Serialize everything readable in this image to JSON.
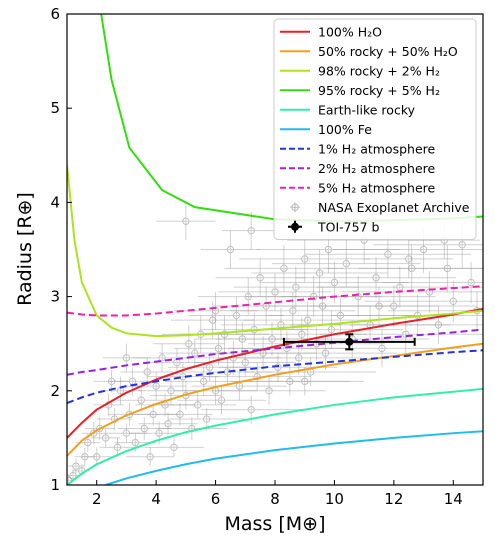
{
  "chart_data": {
    "type": "line",
    "xlabel": "Mass [M⊕]",
    "ylabel": "Radius [R⊕]",
    "xlim": [
      1,
      15
    ],
    "ylim": [
      1,
      6
    ],
    "xticks": [
      2,
      4,
      6,
      8,
      10,
      12,
      14
    ],
    "yticks": [
      1,
      2,
      3,
      4,
      5,
      6
    ],
    "legend_position": "top-right",
    "series": [
      {
        "name": "100% H₂O",
        "color": "#e8202a",
        "style": "solid",
        "x": [
          1,
          1.5,
          2,
          3,
          4,
          5,
          6,
          8,
          10,
          12,
          14,
          15
        ],
        "y": [
          1.5,
          1.66,
          1.8,
          1.98,
          2.12,
          2.23,
          2.32,
          2.47,
          2.6,
          2.71,
          2.81,
          2.87
        ]
      },
      {
        "name": "50% rocky + 50% H₂O",
        "color": "#f0a020",
        "style": "solid",
        "x": [
          1,
          1.5,
          2,
          3,
          4,
          5,
          6,
          8,
          10,
          12,
          14,
          15
        ],
        "y": [
          1.31,
          1.47,
          1.58,
          1.74,
          1.86,
          1.96,
          2.04,
          2.17,
          2.28,
          2.37,
          2.46,
          2.5
        ]
      },
      {
        "name": "98% rocky + 2% H₂",
        "color": "#aee31f",
        "style": "solid",
        "x": [
          1,
          1.25,
          1.5,
          2,
          2.5,
          3,
          4,
          5,
          6,
          8,
          10,
          12,
          14,
          15
        ],
        "y": [
          4.4,
          3.6,
          3.15,
          2.8,
          2.67,
          2.61,
          2.58,
          2.59,
          2.61,
          2.66,
          2.71,
          2.77,
          2.82,
          2.85
        ]
      },
      {
        "name": "95% rocky + 5% H₂",
        "color": "#33dd11",
        "style": "solid",
        "x": [
          2.15,
          2.5,
          3.1,
          4.2,
          5.3,
          8,
          10,
          12,
          14,
          15
        ],
        "y": [
          6.0,
          5.3,
          4.58,
          4.13,
          3.95,
          3.82,
          3.8,
          3.81,
          3.83,
          3.85
        ]
      },
      {
        "name": "Earth-like rocky",
        "color": "#33eeaa",
        "style": "solid",
        "x": [
          1,
          1.5,
          2,
          3,
          4,
          5,
          6,
          8,
          10,
          12,
          14,
          15
        ],
        "y": [
          1.0,
          1.12,
          1.22,
          1.36,
          1.47,
          1.56,
          1.63,
          1.75,
          1.85,
          1.93,
          1.99,
          2.02
        ]
      },
      {
        "name": "100% Fe",
        "color": "#22bbee",
        "style": "solid",
        "x": [
          2.3,
          3,
          4,
          5,
          6,
          8,
          10,
          12,
          14,
          15
        ],
        "y": [
          1.0,
          1.07,
          1.15,
          1.22,
          1.28,
          1.37,
          1.44,
          1.5,
          1.55,
          1.57
        ]
      },
      {
        "name": "1% H₂ atmosphere",
        "color": "#2233dd",
        "style": "dashed",
        "x": [
          1,
          1.5,
          2,
          3,
          4,
          5,
          6,
          8,
          10,
          12,
          14,
          15
        ],
        "y": [
          1.87,
          1.93,
          1.98,
          2.05,
          2.1,
          2.15,
          2.19,
          2.26,
          2.31,
          2.36,
          2.41,
          2.43
        ]
      },
      {
        "name": "2% H₂ atmosphere",
        "color": "#9922dd",
        "style": "dashed",
        "x": [
          1,
          1.5,
          2,
          3,
          4,
          5,
          6,
          8,
          10,
          12,
          14,
          15
        ],
        "y": [
          2.17,
          2.2,
          2.22,
          2.27,
          2.31,
          2.35,
          2.39,
          2.45,
          2.51,
          2.57,
          2.62,
          2.65
        ]
      },
      {
        "name": "5% H₂ atmosphere",
        "color": "#ee22aa",
        "style": "dashed",
        "x": [
          1,
          1.5,
          2,
          3,
          4,
          5,
          6,
          8,
          10,
          12,
          14,
          15
        ],
        "y": [
          2.83,
          2.81,
          2.8,
          2.8,
          2.82,
          2.85,
          2.88,
          2.94,
          3.0,
          3.05,
          3.09,
          3.11
        ]
      }
    ],
    "archive": {
      "name": "NASA Exoplanet Archive",
      "color": "#9a9a9a",
      "points": [
        [
          1.05,
          1.05,
          0.2,
          0.06
        ],
        [
          1.2,
          1.1,
          0.25,
          0.07
        ],
        [
          1.3,
          1.2,
          0.3,
          0.08
        ],
        [
          1.5,
          1.15,
          0.3,
          0.07
        ],
        [
          1.6,
          1.3,
          0.35,
          0.1
        ],
        [
          1.7,
          1.45,
          0.4,
          0.1
        ],
        [
          1.9,
          1.55,
          0.4,
          0.12
        ],
        [
          2.0,
          1.3,
          0.5,
          0.1
        ],
        [
          2.1,
          1.6,
          0.5,
          0.12
        ],
        [
          2.3,
          1.5,
          0.5,
          0.1
        ],
        [
          2.4,
          1.85,
          0.5,
          0.12
        ],
        [
          2.6,
          1.7,
          0.6,
          0.12
        ],
        [
          2.7,
          1.4,
          0.6,
          0.1
        ],
        [
          2.8,
          2.0,
          0.7,
          0.15
        ],
        [
          3.0,
          1.55,
          0.7,
          0.1
        ],
        [
          3.1,
          1.75,
          0.7,
          0.12
        ],
        [
          3.2,
          2.1,
          0.8,
          0.15
        ],
        [
          3.3,
          1.45,
          0.7,
          0.1
        ],
        [
          3.5,
          1.9,
          0.8,
          0.12
        ],
        [
          3.6,
          1.6,
          0.9,
          0.12
        ],
        [
          3.7,
          2.2,
          0.9,
          0.15
        ],
        [
          3.8,
          1.3,
          0.8,
          0.1
        ],
        [
          3.9,
          1.75,
          0.9,
          0.12
        ],
        [
          4.0,
          2.05,
          1.0,
          0.15
        ],
        [
          4.1,
          1.55,
          1.0,
          0.12
        ],
        [
          4.2,
          2.35,
          1.0,
          0.15
        ],
        [
          4.3,
          1.85,
          1.0,
          0.12
        ],
        [
          4.4,
          1.65,
          1.0,
          0.12
        ],
        [
          4.5,
          2.0,
          1.1,
          0.15
        ],
        [
          4.6,
          1.4,
          1.0,
          0.1
        ],
        [
          4.7,
          2.3,
          1.1,
          0.15
        ],
        [
          4.8,
          1.75,
          1.1,
          0.12
        ],
        [
          4.9,
          2.15,
          1.2,
          0.15
        ],
        [
          5.0,
          1.95,
          1.2,
          0.15
        ],
        [
          5.1,
          2.5,
          1.2,
          0.2
        ],
        [
          5.2,
          1.6,
          1.2,
          0.12
        ],
        [
          5.3,
          2.4,
          1.2,
          0.15
        ],
        [
          5.4,
          1.85,
          1.3,
          0.15
        ],
        [
          5.5,
          2.6,
          1.3,
          0.2
        ],
        [
          5.6,
          2.1,
          1.3,
          0.15
        ],
        [
          5.7,
          1.7,
          1.3,
          0.12
        ],
        [
          5.8,
          2.25,
          1.4,
          0.15
        ],
        [
          5.9,
          2.75,
          1.4,
          0.2
        ],
        [
          6.0,
          2.0,
          1.4,
          0.15
        ],
        [
          6.1,
          2.45,
          1.5,
          0.18
        ],
        [
          6.2,
          1.9,
          1.5,
          0.15
        ],
        [
          6.3,
          2.6,
          1.5,
          0.2
        ],
        [
          6.4,
          2.2,
          1.5,
          0.15
        ],
        [
          6.5,
          3.5,
          1.0,
          0.2
        ],
        [
          6.6,
          2.35,
          1.6,
          0.18
        ],
        [
          6.7,
          2.8,
          1.6,
          0.2
        ],
        [
          6.8,
          2.05,
          1.6,
          0.15
        ],
        [
          6.9,
          2.55,
          1.6,
          0.18
        ],
        [
          7.0,
          2.3,
          1.7,
          0.15
        ],
        [
          7.1,
          3.0,
          1.7,
          0.2
        ],
        [
          7.2,
          1.8,
          1.7,
          0.15
        ],
        [
          7.3,
          2.65,
          1.8,
          0.18
        ],
        [
          7.4,
          2.15,
          1.8,
          0.15
        ],
        [
          7.5,
          3.2,
          1.5,
          0.2
        ],
        [
          7.6,
          2.4,
          1.8,
          0.18
        ],
        [
          7.7,
          2.9,
          1.8,
          0.2
        ],
        [
          7.8,
          2.0,
          1.9,
          0.15
        ],
        [
          7.9,
          2.55,
          1.9,
          0.18
        ],
        [
          8.0,
          3.05,
          1.9,
          0.2
        ],
        [
          8.1,
          2.25,
          2.0,
          0.15
        ],
        [
          8.2,
          2.7,
          2.0,
          0.18
        ],
        [
          8.3,
          3.3,
          2.0,
          0.25
        ],
        [
          8.4,
          2.45,
          2.0,
          0.18
        ],
        [
          8.5,
          2.1,
          2.0,
          0.15
        ],
        [
          8.6,
          2.85,
          2.1,
          0.2
        ],
        [
          8.7,
          3.1,
          2.1,
          0.22
        ],
        [
          8.8,
          2.35,
          2.1,
          0.18
        ],
        [
          8.9,
          2.6,
          2.2,
          0.18
        ],
        [
          9.0,
          3.4,
          2.2,
          0.25
        ],
        [
          9.1,
          2.75,
          2.2,
          0.2
        ],
        [
          9.2,
          2.2,
          2.2,
          0.15
        ],
        [
          9.3,
          3.0,
          2.3,
          0.22
        ],
        [
          9.4,
          2.5,
          2.3,
          0.18
        ],
        [
          9.5,
          3.25,
          2.3,
          0.25
        ],
        [
          9.6,
          2.9,
          2.3,
          0.2
        ],
        [
          9.7,
          2.4,
          2.4,
          0.18
        ],
        [
          9.8,
          3.5,
          2.4,
          0.25
        ],
        [
          9.9,
          2.65,
          2.4,
          0.2
        ],
        [
          10.0,
          3.15,
          2.5,
          0.22
        ],
        [
          10.2,
          2.8,
          2.5,
          0.2
        ],
        [
          10.4,
          3.35,
          2.5,
          0.25
        ],
        [
          10.6,
          2.55,
          2.6,
          0.2
        ],
        [
          10.8,
          3.0,
          2.6,
          0.22
        ],
        [
          11.0,
          3.6,
          2.6,
          0.25
        ],
        [
          11.2,
          2.7,
          2.7,
          0.2
        ],
        [
          11.4,
          3.2,
          2.7,
          0.22
        ],
        [
          11.6,
          2.45,
          2.7,
          0.2
        ],
        [
          11.8,
          3.45,
          2.8,
          0.25
        ],
        [
          12.0,
          2.9,
          2.8,
          0.22
        ],
        [
          12.2,
          3.1,
          2.8,
          0.22
        ],
        [
          12.4,
          2.6,
          2.9,
          0.2
        ],
        [
          12.6,
          3.3,
          2.9,
          0.25
        ],
        [
          12.8,
          2.8,
          2.9,
          0.22
        ],
        [
          13.0,
          3.5,
          3.0,
          0.25
        ],
        [
          13.2,
          3.05,
          3.0,
          0.22
        ],
        [
          13.5,
          2.7,
          3.0,
          0.2
        ],
        [
          13.8,
          3.3,
          3.0,
          0.25
        ],
        [
          14.0,
          2.95,
          3.0,
          0.22
        ],
        [
          14.3,
          3.55,
          3.0,
          0.25
        ],
        [
          14.6,
          3.15,
          3.0,
          0.22
        ],
        [
          14.8,
          2.85,
          3.0,
          0.2
        ],
        [
          7.2,
          3.7,
          1.0,
          0.2
        ],
        [
          5.0,
          3.8,
          1.0,
          0.2
        ],
        [
          12.5,
          3.4,
          1.5,
          0.2
        ],
        [
          13.7,
          3.6,
          1.2,
          0.2
        ],
        [
          3.0,
          2.35,
          0.8,
          0.15
        ],
        [
          2.5,
          2.1,
          0.6,
          0.12
        ],
        [
          6.0,
          2.85,
          1.4,
          0.2
        ],
        [
          11.5,
          2.9,
          2.0,
          0.2
        ],
        [
          9.0,
          2.1,
          2.0,
          0.15
        ]
      ]
    },
    "highlight": {
      "name": "TOI-757 b",
      "color": "#000000",
      "x": 10.5,
      "x_err": 2.2,
      "y": 2.52,
      "y_err": 0.08
    }
  }
}
